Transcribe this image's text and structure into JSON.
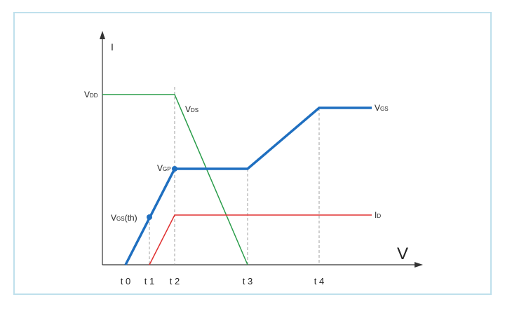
{
  "axes": {
    "y": "I",
    "x": "V"
  },
  "labels": {
    "vdd": {
      "main": "V",
      "sub": "DD"
    },
    "vds": {
      "main": "V",
      "sub": "DS"
    },
    "vgp": {
      "main": "V",
      "sub": "GP"
    },
    "vgs_th": {
      "main": "V",
      "sub": "GS",
      "suffix": "(th)"
    },
    "vgs": {
      "main": "V",
      "sub": "GS"
    },
    "id": {
      "main": "I",
      "sub": "D"
    }
  },
  "ticks": [
    "t 0",
    "t 1",
    "t 2",
    "t 3",
    "t 4"
  ]
}
